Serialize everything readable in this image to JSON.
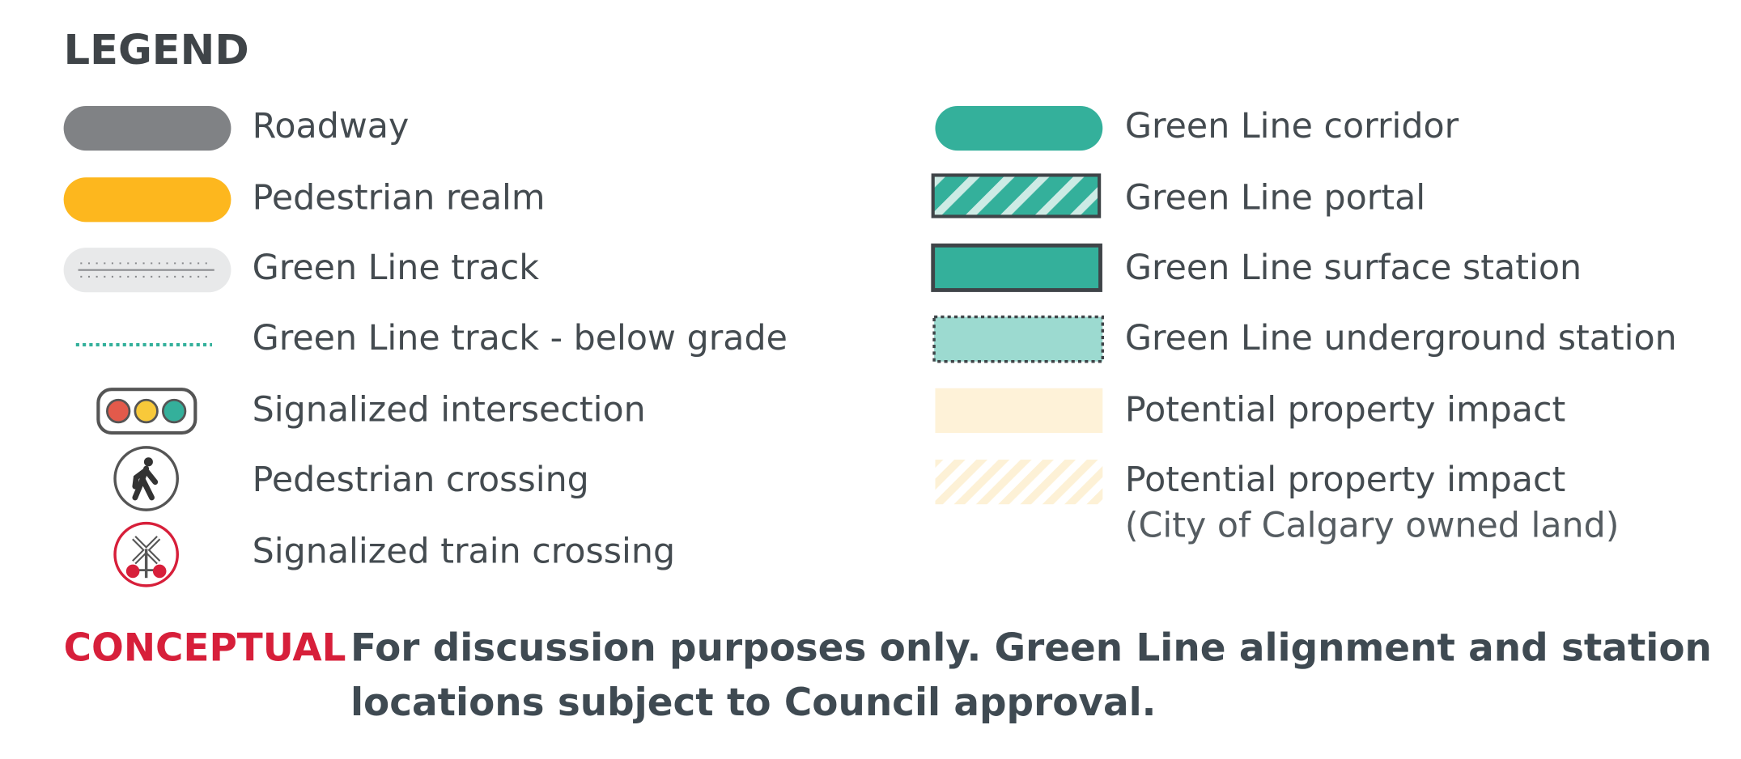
{
  "legend": {
    "title": "LEGEND",
    "left": [
      "Roadway",
      "Pedestrian realm",
      "Green Line track",
      "Green Line track - below grade",
      "Signalized intersection",
      "Pedestrian crossing",
      "Signalized train crossing"
    ],
    "right": [
      "Green Line corridor",
      "Green Line portal",
      "Green Line surface station",
      "Green Line underground station",
      "Potential property impact",
      "Potential property impact"
    ],
    "right_note": "(City of Calgary owned land)"
  },
  "note": {
    "label": "CONCEPTUAL",
    "lines": [
      "For discussion purposes only. Green Line alignment and station",
      "locations subject to Council approval."
    ]
  }
}
